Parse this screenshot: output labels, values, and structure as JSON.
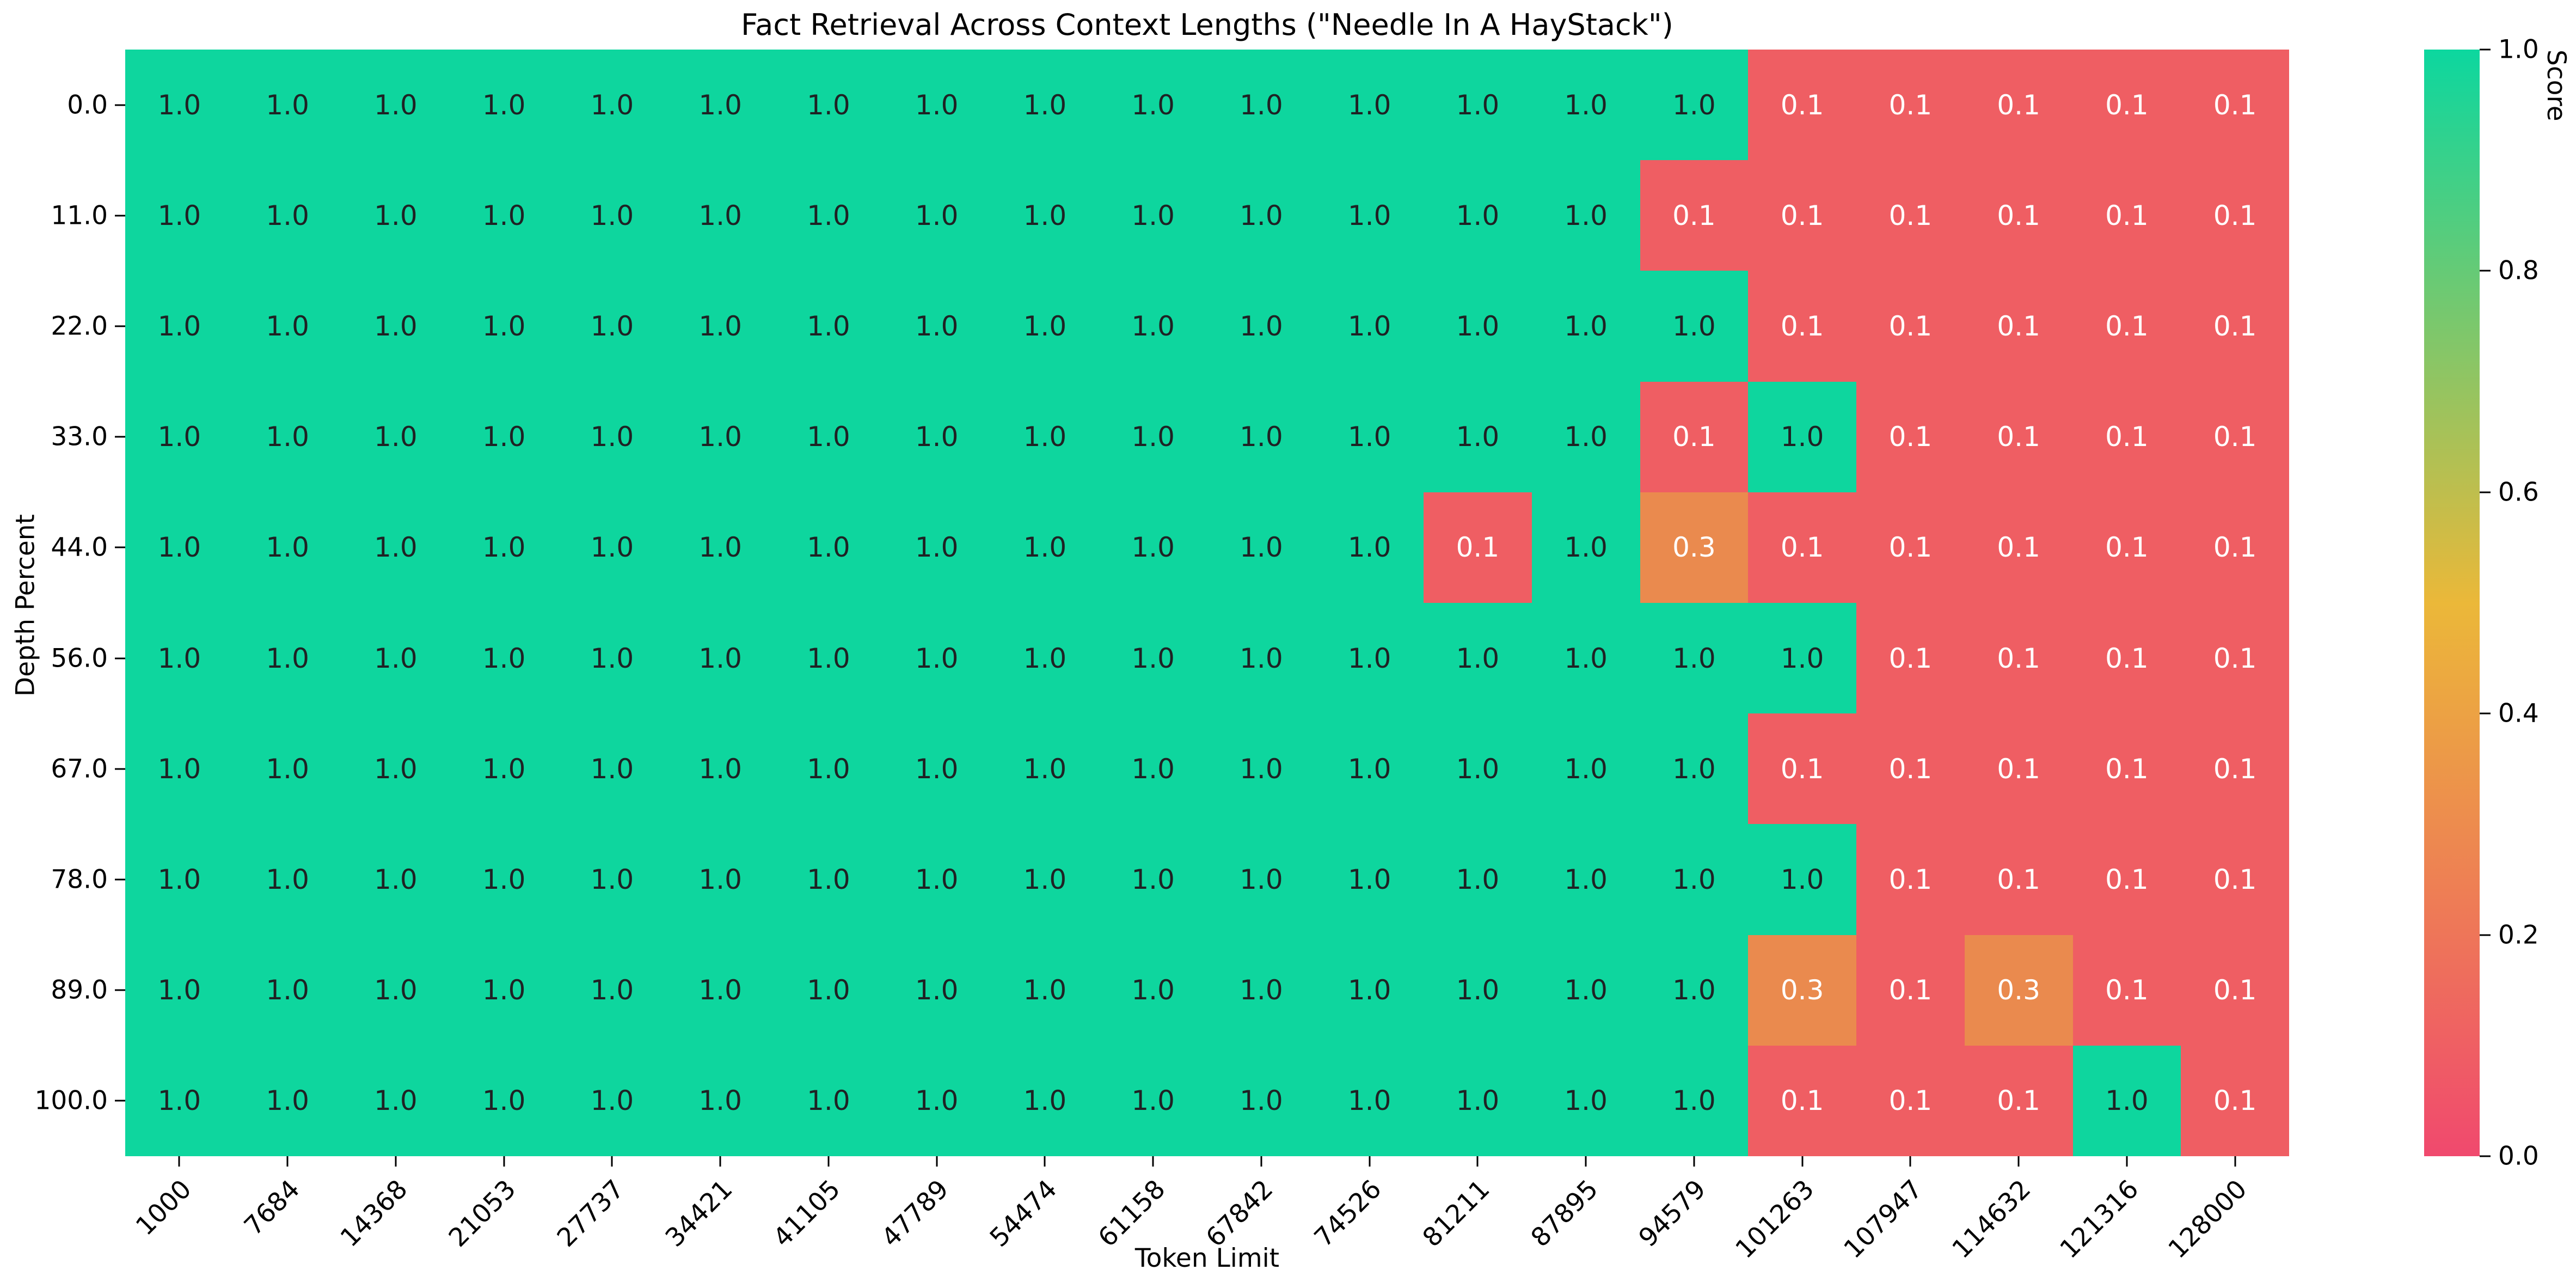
{
  "chart_data": {
    "type": "heatmap",
    "title": "Fact Retrieval Across Context Lengths (\"Needle In A HayStack\")",
    "xlabel": "Token Limit",
    "ylabel": "Depth Percent",
    "x_categories": [
      "1000",
      "7684",
      "14368",
      "21053",
      "27737",
      "34421",
      "41105",
      "47789",
      "54474",
      "61158",
      "67842",
      "74526",
      "81211",
      "87895",
      "94579",
      "101263",
      "107947",
      "114632",
      "121316",
      "128000"
    ],
    "y_categories": [
      "0.0",
      "11.0",
      "22.0",
      "33.0",
      "44.0",
      "56.0",
      "67.0",
      "78.0",
      "89.0",
      "100.0"
    ],
    "values": [
      [
        "1.0",
        "1.0",
        "1.0",
        "1.0",
        "1.0",
        "1.0",
        "1.0",
        "1.0",
        "1.0",
        "1.0",
        "1.0",
        "1.0",
        "1.0",
        "1.0",
        "1.0",
        "0.1",
        "0.1",
        "0.1",
        "0.1",
        "0.1"
      ],
      [
        "1.0",
        "1.0",
        "1.0",
        "1.0",
        "1.0",
        "1.0",
        "1.0",
        "1.0",
        "1.0",
        "1.0",
        "1.0",
        "1.0",
        "1.0",
        "1.0",
        "0.1",
        "0.1",
        "0.1",
        "0.1",
        "0.1",
        "0.1"
      ],
      [
        "1.0",
        "1.0",
        "1.0",
        "1.0",
        "1.0",
        "1.0",
        "1.0",
        "1.0",
        "1.0",
        "1.0",
        "1.0",
        "1.0",
        "1.0",
        "1.0",
        "1.0",
        "0.1",
        "0.1",
        "0.1",
        "0.1",
        "0.1"
      ],
      [
        "1.0",
        "1.0",
        "1.0",
        "1.0",
        "1.0",
        "1.0",
        "1.0",
        "1.0",
        "1.0",
        "1.0",
        "1.0",
        "1.0",
        "1.0",
        "1.0",
        "0.1",
        "1.0",
        "0.1",
        "0.1",
        "0.1",
        "0.1"
      ],
      [
        "1.0",
        "1.0",
        "1.0",
        "1.0",
        "1.0",
        "1.0",
        "1.0",
        "1.0",
        "1.0",
        "1.0",
        "1.0",
        "1.0",
        "0.1",
        "1.0",
        "0.3",
        "0.1",
        "0.1",
        "0.1",
        "0.1",
        "0.1"
      ],
      [
        "1.0",
        "1.0",
        "1.0",
        "1.0",
        "1.0",
        "1.0",
        "1.0",
        "1.0",
        "1.0",
        "1.0",
        "1.0",
        "1.0",
        "1.0",
        "1.0",
        "1.0",
        "1.0",
        "0.1",
        "0.1",
        "0.1",
        "0.1"
      ],
      [
        "1.0",
        "1.0",
        "1.0",
        "1.0",
        "1.0",
        "1.0",
        "1.0",
        "1.0",
        "1.0",
        "1.0",
        "1.0",
        "1.0",
        "1.0",
        "1.0",
        "1.0",
        "0.1",
        "0.1",
        "0.1",
        "0.1",
        "0.1"
      ],
      [
        "1.0",
        "1.0",
        "1.0",
        "1.0",
        "1.0",
        "1.0",
        "1.0",
        "1.0",
        "1.0",
        "1.0",
        "1.0",
        "1.0",
        "1.0",
        "1.0",
        "1.0",
        "1.0",
        "0.1",
        "0.1",
        "0.1",
        "0.1"
      ],
      [
        "1.0",
        "1.0",
        "1.0",
        "1.0",
        "1.0",
        "1.0",
        "1.0",
        "1.0",
        "1.0",
        "1.0",
        "1.0",
        "1.0",
        "1.0",
        "1.0",
        "1.0",
        "0.3",
        "0.1",
        "0.3",
        "0.1",
        "0.1"
      ],
      [
        "1.0",
        "1.0",
        "1.0",
        "1.0",
        "1.0",
        "1.0",
        "1.0",
        "1.0",
        "1.0",
        "1.0",
        "1.0",
        "1.0",
        "1.0",
        "1.0",
        "1.0",
        "0.1",
        "0.1",
        "0.1",
        "1.0",
        "0.1"
      ]
    ],
    "value_range": [
      0.0,
      1.0
    ],
    "grid": false,
    "cell_styles": {
      "1.0": {
        "bg": "#0ED69E",
        "fg": "#1f2224"
      },
      "0.3": {
        "bg": "#EA8A4E",
        "fg": "#ffffff"
      },
      "0.1": {
        "bg": "#EF5E63",
        "fg": "#ffffff"
      }
    },
    "colorbar": {
      "label": "Score",
      "ticks": [
        "1.0",
        "0.8",
        "0.6",
        "0.4",
        "0.2",
        "0.0"
      ],
      "min": 0.0,
      "max": 1.0,
      "position": "right",
      "gradient_stops": [
        {
          "pos": 0.0,
          "color": "#F0496E"
        },
        {
          "pos": 0.5,
          "color": "#EBB839"
        },
        {
          "pos": 1.0,
          "color": "#0CD79F"
        }
      ]
    }
  }
}
